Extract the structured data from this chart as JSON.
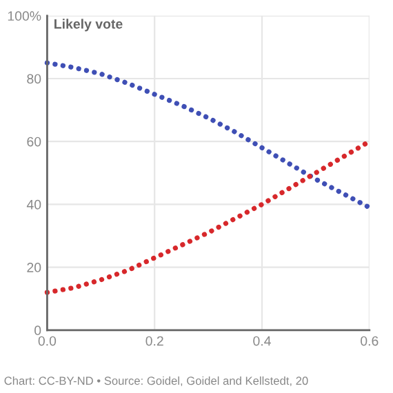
{
  "chart_data": {
    "type": "line",
    "ylabel": "Likely vote",
    "x": [
      0,
      0.05,
      0.1,
      0.15,
      0.2,
      0.25,
      0.3,
      0.35,
      0.4,
      0.45,
      0.5,
      0.55,
      0.6
    ],
    "series": [
      {
        "color": "#3f4fb5",
        "values": [
          85,
          83.5,
          81.5,
          78.5,
          75,
          71.5,
          67.5,
          63,
          58,
          53,
          48,
          43.5,
          39
        ]
      },
      {
        "color": "#d7282b",
        "values": [
          12,
          13.5,
          16,
          19,
          23,
          27,
          31,
          35.5,
          40,
          45,
          50,
          55,
          60
        ]
      }
    ],
    "xlim": [
      0,
      0.6
    ],
    "xticks": [
      {
        "value": 0,
        "label": "0.0"
      },
      0.2,
      0.4,
      0.6
    ],
    "ylim": [
      0,
      100
    ],
    "yticks": [
      0,
      20,
      40,
      60,
      80,
      {
        "value": 100,
        "label": "100%"
      }
    ],
    "grid": true,
    "line_style": "dotted",
    "marker": "none",
    "legend": false,
    "annotations": [
      "Chart: CC-BY-ND • Source: Goidel, Goidel and Kellstedt, 20"
    ]
  }
}
